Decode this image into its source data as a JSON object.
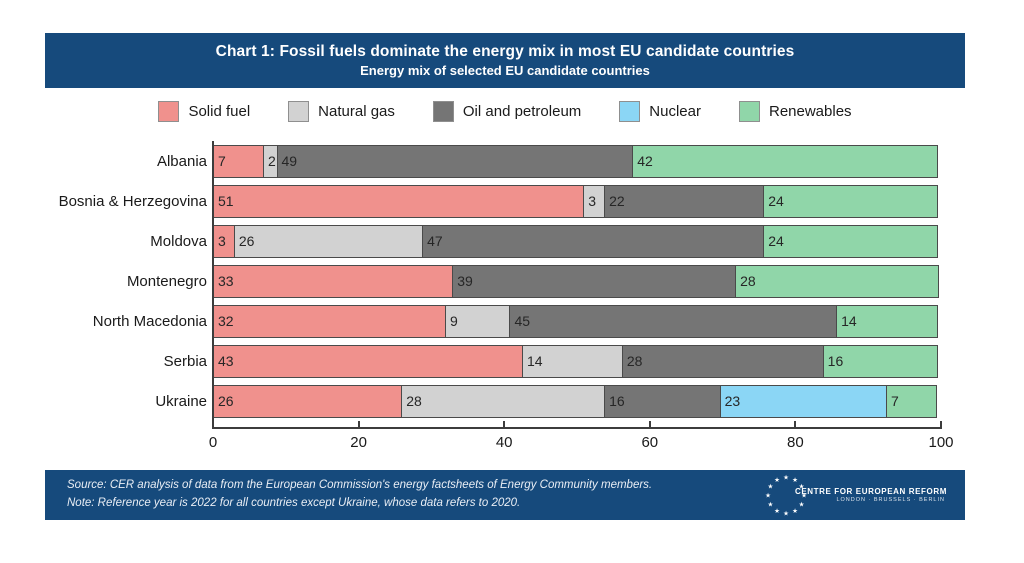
{
  "header": {
    "title": "Chart 1: Fossil fuels dominate the energy mix in most EU candidate countries",
    "subtitle": "Energy mix of selected EU candidate countries"
  },
  "chart_data": {
    "type": "bar",
    "orientation": "horizontal_stacked",
    "title": "Energy mix of selected EU candidate countries",
    "categories": [
      "Albania",
      "Bosnia & Herzegovina",
      "Moldova",
      "Montenegro",
      "North Macedonia",
      "Serbia",
      "Ukraine"
    ],
    "series": [
      {
        "name": "Solid fuel",
        "color": "#f0918d",
        "values": [
          7,
          51,
          3,
          33,
          32,
          43,
          26
        ]
      },
      {
        "name": "Natural gas",
        "color": "#d2d2d2",
        "values": [
          2,
          3,
          26,
          0,
          9,
          14,
          28
        ]
      },
      {
        "name": "Oil and petroleum",
        "color": "#757575",
        "values": [
          49,
          22,
          47,
          39,
          45,
          28,
          16
        ]
      },
      {
        "name": "Nuclear",
        "color": "#8bd6f5",
        "values": [
          0,
          0,
          0,
          0,
          0,
          0,
          23
        ]
      },
      {
        "name": "Renewables",
        "color": "#90d6a9",
        "values": [
          42,
          24,
          24,
          28,
          14,
          16,
          7
        ]
      }
    ],
    "xlim": [
      0,
      100
    ],
    "x_ticks": [
      0,
      20,
      40,
      60,
      80,
      100
    ],
    "grid": false,
    "legend_position": "top",
    "value_labels": "inside_left"
  },
  "footer": {
    "source_line": "Source: CER analysis of data from the European Commission's energy factsheets of Energy Community members.",
    "note_line": "Note: Reference year is 2022 for all countries except Ukraine, whose data refers to 2020.",
    "logo": {
      "name": "CENTRE FOR EUROPEAN REFORM",
      "cities": "LONDON · BRUSSELS · BERLIN"
    }
  },
  "colors": {
    "band_blue": "#164a7c",
    "segment_border": "#4a4a4a",
    "axis": "#3c3c3c",
    "text_dark": "#1a1a1a"
  }
}
